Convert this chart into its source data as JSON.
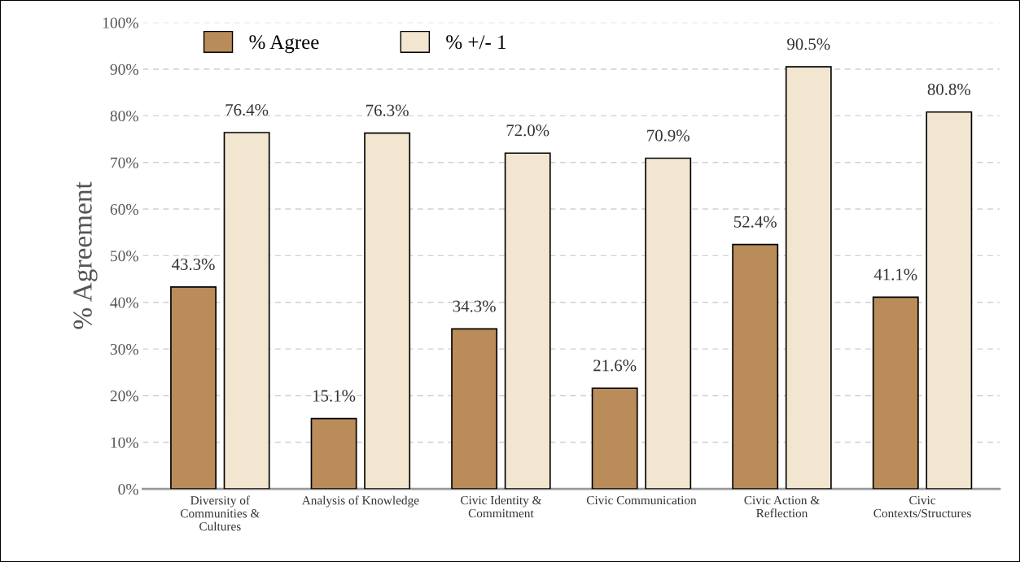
{
  "chart_data": {
    "type": "bar",
    "ylabel": "% Agreement",
    "categories": [
      "Diversity of\nCommunities &\nCultures",
      "Analysis of Knowledge",
      "Civic Identity &\nCommitment",
      "Civic Communication",
      "Civic Action &\nReflection",
      "Civic\nContexts/Structures"
    ],
    "series": [
      {
        "name": "% Agree",
        "color": "#b98c5a",
        "values": [
          43.3,
          15.1,
          34.3,
          21.6,
          52.4,
          41.1
        ],
        "value_labels": [
          "43.3%",
          "15.1%",
          "34.3%",
          "21.6%",
          "52.4%",
          "41.1%"
        ]
      },
      {
        "name": "% +/- 1",
        "color": "#f3e6d0",
        "values": [
          76.4,
          76.3,
          72.0,
          70.9,
          90.5,
          80.8
        ],
        "value_labels": [
          "76.4%",
          "76.3%",
          "72.0%",
          "70.9%",
          "90.5%",
          "80.8%"
        ]
      }
    ],
    "ylim": [
      0,
      100
    ],
    "yticks": [
      {
        "value": 0,
        "label": "0%"
      },
      {
        "value": 10,
        "label": "10%"
      },
      {
        "value": 20,
        "label": "20%"
      },
      {
        "value": 30,
        "label": "30%"
      },
      {
        "value": 40,
        "label": "40%"
      },
      {
        "value": 50,
        "label": "50%"
      },
      {
        "value": 60,
        "label": "60%"
      },
      {
        "value": 70,
        "label": "70%"
      },
      {
        "value": 80,
        "label": "80%"
      },
      {
        "value": 90,
        "label": "90%"
      },
      {
        "value": 100,
        "label": "100%"
      }
    ],
    "grid": "y",
    "legend": "top left"
  }
}
